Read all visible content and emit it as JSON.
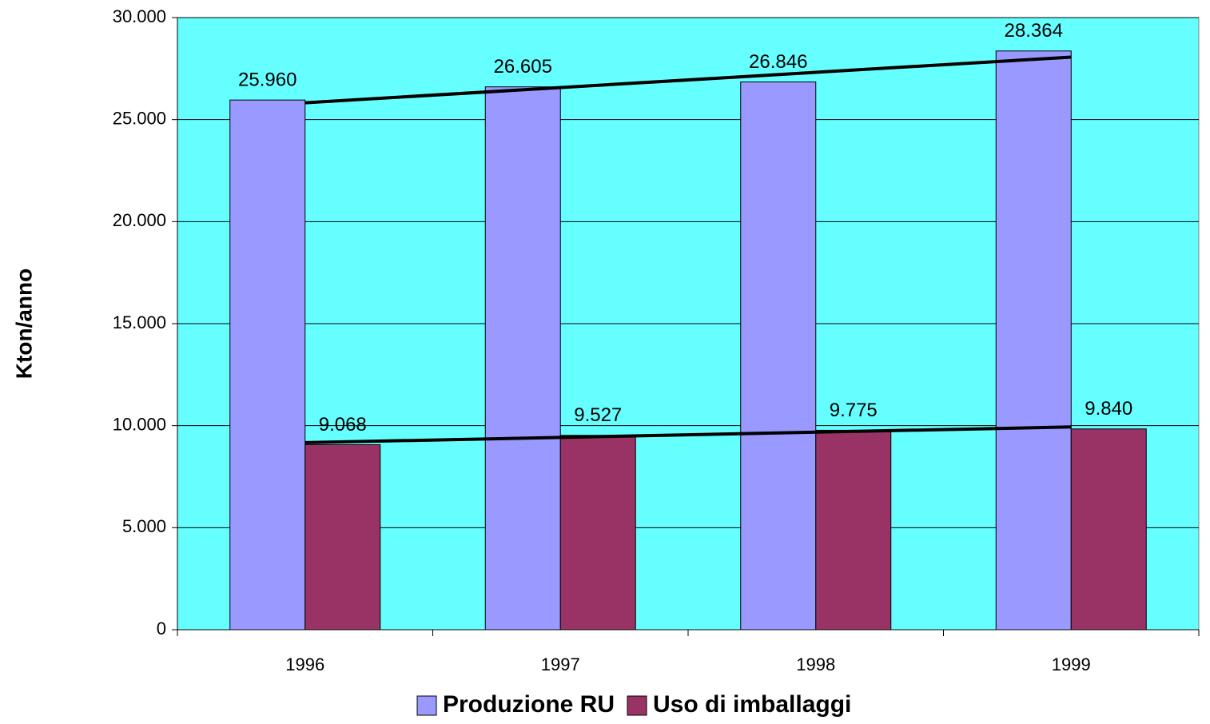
{
  "chart_data": {
    "type": "bar",
    "y_label": "Kton/anno",
    "categories": [
      "1996",
      "1997",
      "1998",
      "1999"
    ],
    "series": [
      {
        "name": "Produzione RU",
        "color": "#9999ff",
        "values": [
          25960,
          26605,
          26846,
          28364
        ],
        "value_labels": [
          "25.960",
          "26.605",
          "26.846",
          "28.364"
        ]
      },
      {
        "name": "Uso di imballaggi",
        "color": "#993366",
        "values": [
          9068,
          9527,
          9775,
          9840
        ],
        "value_labels": [
          "9.068",
          "9.527",
          "9.775",
          "9.840"
        ]
      }
    ],
    "ylim": [
      0,
      30000
    ],
    "yticks": [
      0,
      {
        "value": 5000,
        "label": "5.000"
      },
      {
        "value": 10000,
        "label": "10.000"
      },
      {
        "value": 15000,
        "label": "15.000"
      },
      {
        "value": 20000,
        "label": "20.000"
      },
      {
        "value": 25000,
        "label": "25.000"
      },
      {
        "value": 30000,
        "label": "30.000"
      }
    ],
    "grid": true,
    "trendline": true,
    "plot_background": "#66ffff",
    "legend": "bottom"
  }
}
